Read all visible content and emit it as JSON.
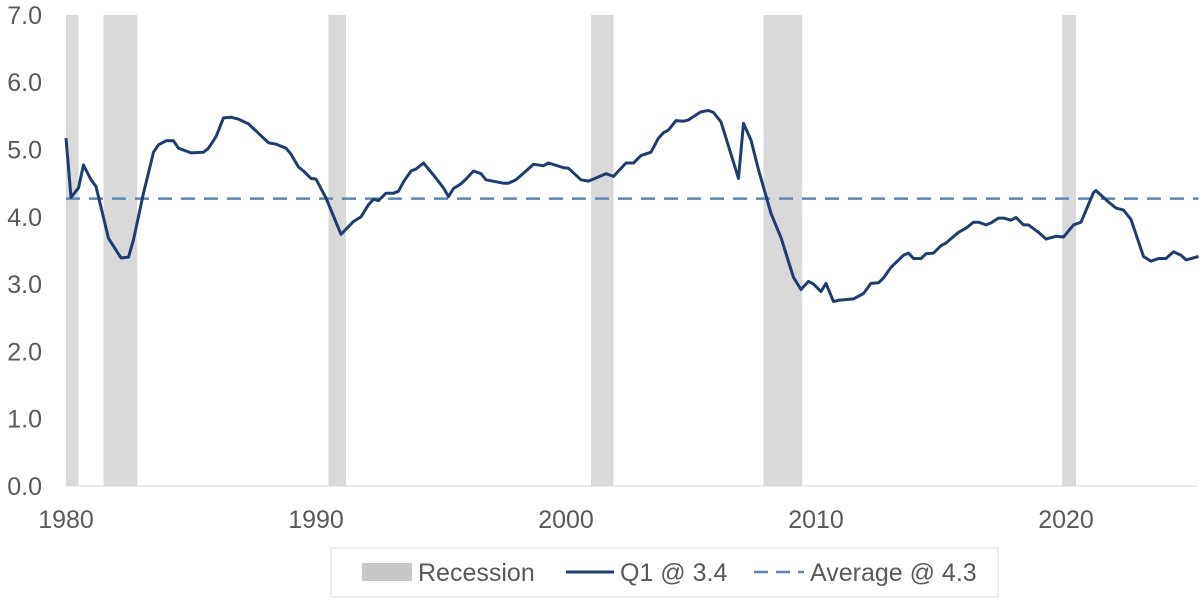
{
  "chart_data": {
    "type": "line",
    "title": "",
    "xlabel": "",
    "ylabel": "",
    "xlim": [
      1980,
      2025.3
    ],
    "ylim": [
      0,
      7
    ],
    "x_ticks": [
      1980,
      1990,
      2000,
      2010,
      2020
    ],
    "x_tick_labels": [
      "1980",
      "1990",
      "2000",
      "2010",
      "2020"
    ],
    "y_ticks": [
      0,
      1,
      2,
      3,
      4,
      5,
      6,
      7
    ],
    "y_tick_labels": [
      "0.0",
      "1.0",
      "2.0",
      "3.0",
      "4.0",
      "5.0",
      "6.0",
      "7.0"
    ],
    "grid": false,
    "legend_position": "bottom",
    "legend": {
      "recession": "Recession",
      "series": "Q1 @ 3.4",
      "average": "Average @ 4.3"
    },
    "colors": {
      "series": "#1f3d6e",
      "average": "#5f87b0",
      "recession": "#d9d9d9"
    },
    "average": 4.27,
    "recessions": [
      [
        1980.0,
        1980.5
      ],
      [
        1981.5,
        1982.85
      ],
      [
        1990.5,
        1991.2
      ],
      [
        2001.0,
        2001.9
      ],
      [
        2007.9,
        2009.45
      ],
      [
        2019.85,
        2020.4
      ]
    ],
    "series": [
      {
        "name": "Q1 @ 3.4",
        "points": [
          [
            1980.0,
            5.17
          ],
          [
            1980.2,
            4.29
          ],
          [
            1980.5,
            4.43
          ],
          [
            1980.7,
            4.77
          ],
          [
            1981.0,
            4.55
          ],
          [
            1981.2,
            4.45
          ],
          [
            1981.7,
            3.68
          ],
          [
            1982.2,
            3.39
          ],
          [
            1982.5,
            3.4
          ],
          [
            1982.7,
            3.66
          ],
          [
            1983.1,
            4.35
          ],
          [
            1983.5,
            4.96
          ],
          [
            1983.7,
            5.07
          ],
          [
            1984.0,
            5.13
          ],
          [
            1984.3,
            5.13
          ],
          [
            1984.5,
            5.02
          ],
          [
            1985.0,
            4.95
          ],
          [
            1985.5,
            4.96
          ],
          [
            1985.7,
            5.02
          ],
          [
            1986.0,
            5.19
          ],
          [
            1986.3,
            5.47
          ],
          [
            1986.6,
            5.48
          ],
          [
            1986.9,
            5.45
          ],
          [
            1987.3,
            5.38
          ],
          [
            1987.7,
            5.24
          ],
          [
            1988.1,
            5.1
          ],
          [
            1988.4,
            5.08
          ],
          [
            1988.8,
            5.02
          ],
          [
            1989.0,
            4.93
          ],
          [
            1989.3,
            4.74
          ],
          [
            1989.5,
            4.68
          ],
          [
            1989.8,
            4.57
          ],
          [
            1990.0,
            4.56
          ],
          [
            1990.4,
            4.28
          ],
          [
            1991.0,
            3.74
          ],
          [
            1991.5,
            3.93
          ],
          [
            1991.8,
            4.0
          ],
          [
            1992.1,
            4.18
          ],
          [
            1992.3,
            4.26
          ],
          [
            1992.5,
            4.24
          ],
          [
            1992.8,
            4.35
          ],
          [
            1993.1,
            4.35
          ],
          [
            1993.3,
            4.38
          ],
          [
            1993.5,
            4.52
          ],
          [
            1993.8,
            4.68
          ],
          [
            1994.0,
            4.71
          ],
          [
            1994.3,
            4.8
          ],
          [
            1994.7,
            4.62
          ],
          [
            1995.1,
            4.43
          ],
          [
            1995.3,
            4.3
          ],
          [
            1995.5,
            4.42
          ],
          [
            1995.8,
            4.49
          ],
          [
            1996.0,
            4.56
          ],
          [
            1996.3,
            4.68
          ],
          [
            1996.6,
            4.64
          ],
          [
            1996.8,
            4.55
          ],
          [
            1997.5,
            4.5
          ],
          [
            1997.7,
            4.5
          ],
          [
            1998.0,
            4.55
          ],
          [
            1998.4,
            4.68
          ],
          [
            1998.7,
            4.78
          ],
          [
            1999.1,
            4.76
          ],
          [
            1999.3,
            4.8
          ],
          [
            1999.9,
            4.73
          ],
          [
            2000.1,
            4.72
          ],
          [
            2000.6,
            4.55
          ],
          [
            2000.9,
            4.53
          ],
          [
            2001.6,
            4.64
          ],
          [
            2001.9,
            4.6
          ],
          [
            2002.4,
            4.8
          ],
          [
            2002.7,
            4.8
          ],
          [
            2003.0,
            4.91
          ],
          [
            2003.4,
            4.96
          ],
          [
            2003.7,
            5.17
          ],
          [
            2003.9,
            5.25
          ],
          [
            2004.1,
            5.29
          ],
          [
            2004.4,
            5.43
          ],
          [
            2004.7,
            5.42
          ],
          [
            2004.9,
            5.44
          ],
          [
            2005.4,
            5.56
          ],
          [
            2005.7,
            5.58
          ],
          [
            2005.9,
            5.55
          ],
          [
            2006.2,
            5.41
          ],
          [
            2006.9,
            4.57
          ],
          [
            2007.1,
            5.39
          ],
          [
            2007.4,
            5.14
          ],
          [
            2007.7,
            4.7
          ],
          [
            2008.2,
            4.05
          ],
          [
            2008.6,
            3.69
          ],
          [
            2009.1,
            3.1
          ],
          [
            2009.4,
            2.92
          ],
          [
            2009.7,
            3.04
          ],
          [
            2009.9,
            3.0
          ],
          [
            2010.2,
            2.89
          ],
          [
            2010.4,
            3.01
          ],
          [
            2010.7,
            2.74
          ],
          [
            2010.9,
            2.76
          ],
          [
            2011.5,
            2.78
          ],
          [
            2011.9,
            2.86
          ],
          [
            2012.2,
            3.01
          ],
          [
            2012.5,
            3.02
          ],
          [
            2012.7,
            3.09
          ],
          [
            2013.0,
            3.25
          ],
          [
            2013.5,
            3.43
          ],
          [
            2013.7,
            3.46
          ],
          [
            2013.9,
            3.38
          ],
          [
            2014.2,
            3.38
          ],
          [
            2014.4,
            3.45
          ],
          [
            2014.7,
            3.46
          ],
          [
            2015.0,
            3.57
          ],
          [
            2015.2,
            3.61
          ],
          [
            2015.7,
            3.77
          ],
          [
            2016.0,
            3.83
          ],
          [
            2016.3,
            3.92
          ],
          [
            2016.5,
            3.92
          ],
          [
            2016.8,
            3.88
          ],
          [
            2017.0,
            3.91
          ],
          [
            2017.3,
            3.98
          ],
          [
            2017.5,
            3.98
          ],
          [
            2017.8,
            3.95
          ],
          [
            2018.0,
            3.99
          ],
          [
            2018.3,
            3.88
          ],
          [
            2018.5,
            3.88
          ],
          [
            2018.9,
            3.77
          ],
          [
            2019.2,
            3.67
          ],
          [
            2019.6,
            3.71
          ],
          [
            2019.9,
            3.7
          ],
          [
            2020.3,
            3.88
          ],
          [
            2020.6,
            3.92
          ],
          [
            2021.1,
            4.36
          ],
          [
            2021.2,
            4.39
          ],
          [
            2021.7,
            4.22
          ],
          [
            2022.0,
            4.13
          ],
          [
            2022.3,
            4.1
          ],
          [
            2022.6,
            3.96
          ],
          [
            2023.1,
            3.41
          ],
          [
            2023.4,
            3.34
          ],
          [
            2023.7,
            3.38
          ],
          [
            2024.0,
            3.38
          ],
          [
            2024.3,
            3.48
          ],
          [
            2024.6,
            3.43
          ],
          [
            2024.8,
            3.36
          ],
          [
            2025.3,
            3.41
          ]
        ]
      }
    ]
  }
}
